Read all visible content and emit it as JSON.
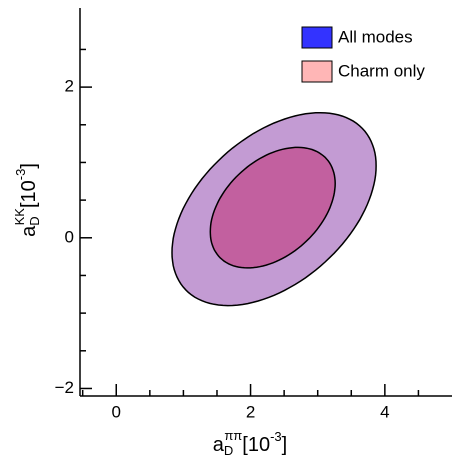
{
  "chart_data": {
    "type": "ellipse",
    "x_label": {
      "base": "a",
      "sub": "D",
      "sup": "ππ",
      "unit": "[10",
      "unit_sup": "-3",
      "close": "]"
    },
    "y_label": {
      "base": "a",
      "sub": "D",
      "sup": "KK",
      "unit": "[10",
      "unit_sup": "-3",
      "close": "]"
    },
    "xlim": [
      -0.54,
      5.0
    ],
    "ylim": [
      -2.1,
      3.05
    ],
    "xticks": [
      0,
      2,
      4
    ],
    "yticks": [
      {
        "value": -2,
        "label": "−2"
      },
      0,
      2
    ],
    "xminorticks": [
      -0.5,
      0.5,
      1,
      1.5,
      2.5,
      3,
      3.5,
      4.5
    ],
    "yminorticks": [
      -1.5,
      -1,
      -0.5,
      0.5,
      1,
      1.5,
      2.5
    ],
    "series": [
      {
        "name": "Charm only",
        "color": "#ffb6b6",
        "fill": "#c39bd3",
        "center": [
          2.35,
          0.38
        ],
        "half_width": 1.52,
        "half_height": 1.28,
        "rho": 0.45
      },
      {
        "name": "All modes",
        "color": "#3333ff",
        "fill": "#c2609f",
        "center": [
          2.33,
          0.4
        ],
        "half_width": 0.93,
        "half_height": 0.8,
        "rho": 0.4
      }
    ],
    "legend": "top-right"
  }
}
